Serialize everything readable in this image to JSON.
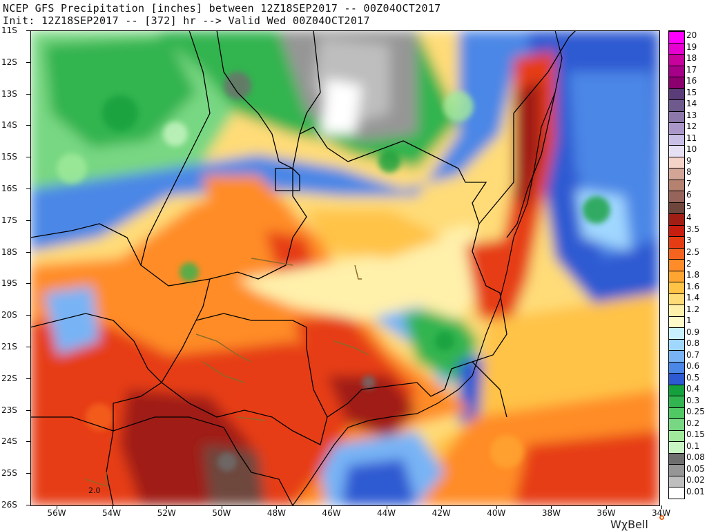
{
  "header": {
    "line1": "NCEP GFS Precipitation [inches] between 12Z18SEP2017 -- 00Z04OCT2017",
    "line2": "Init: 12Z18SEP2017 -- [372] hr --> Valid Wed 00Z04OCT2017"
  },
  "map": {
    "lat_labels": [
      "11S",
      "12S",
      "13S",
      "14S",
      "15S",
      "16S",
      "17S",
      "18S",
      "19S",
      "20S",
      "21S",
      "22S",
      "23S",
      "24S",
      "25S",
      "26S"
    ],
    "lon_labels": [
      "56W",
      "54W",
      "52W",
      "50W",
      "48W",
      "46W",
      "44W",
      "42W",
      "40W",
      "38W",
      "36W",
      "34W"
    ],
    "contour_label": "2.0"
  },
  "colorbar": {
    "levels": [
      "20",
      "19",
      "18",
      "17",
      "16",
      "15",
      "14",
      "13",
      "12",
      "11",
      "10",
      "9",
      "8",
      "7",
      "6",
      "5",
      "4",
      "3.5",
      "3",
      "2.5",
      "2",
      "1.8",
      "1.6",
      "1.4",
      "1.2",
      "1",
      "0.9",
      "0.8",
      "0.7",
      "0.6",
      "0.5",
      "0.4",
      "0.3",
      "0.25",
      "0.2",
      "0.15",
      "0.1",
      "0.08",
      "0.05",
      "0.02",
      "0.01"
    ],
    "colors": [
      "#ff00ff",
      "#e600d2",
      "#c8009e",
      "#a50087",
      "#8c006e",
      "#5a3c78",
      "#6e5a8c",
      "#8c78aa",
      "#aa96c8",
      "#c8bee6",
      "#e6e0f5",
      "#f5d2c8",
      "#d2a596",
      "#b4826e",
      "#96645a",
      "#6e463c",
      "#a01e14",
      "#c81e0f",
      "#e63c14",
      "#f5641e",
      "#ff8c28",
      "#ffa532",
      "#ffc346",
      "#ffdc78",
      "#fff0aa",
      "#fffac8",
      "#c8f0ff",
      "#a0d7ff",
      "#78b4f5",
      "#4b87e6",
      "#2d5ad2",
      "#14a03c",
      "#32b450",
      "#50c864",
      "#78d782",
      "#a0eb9b",
      "#c8f5c3",
      "#6e6e6e",
      "#969696",
      "#bebebe",
      "#ffffff"
    ]
  },
  "brand": {
    "name": "WχBell"
  }
}
